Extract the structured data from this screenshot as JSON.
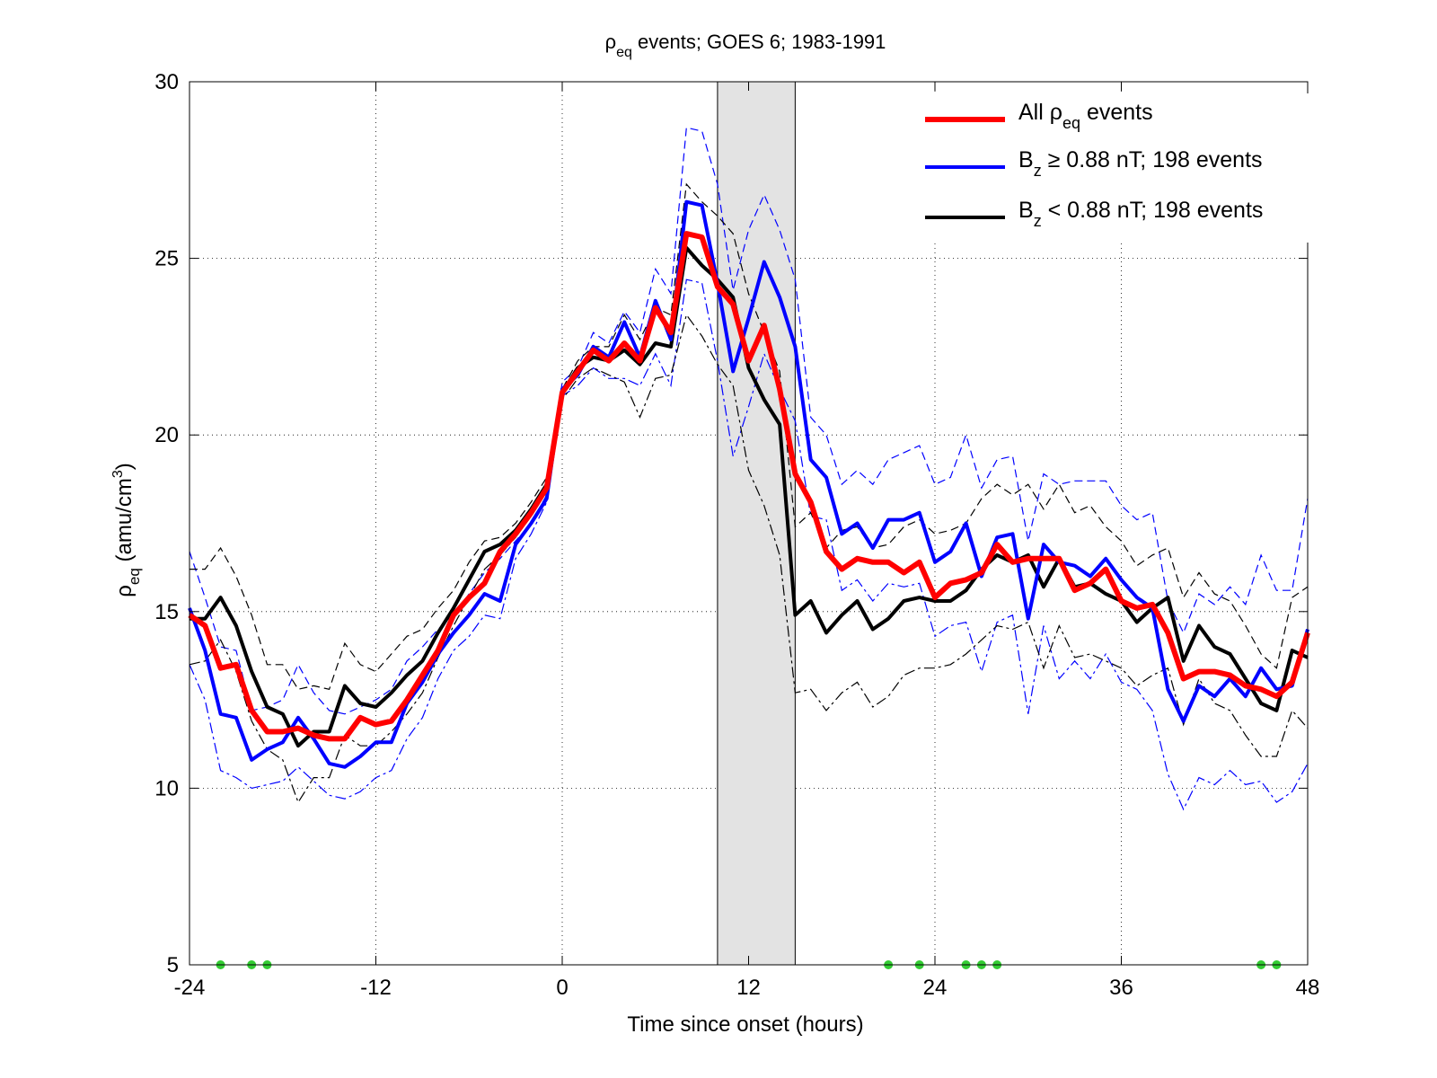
{
  "chart_data": {
    "type": "line",
    "title": {
      "sym": "ρ",
      "sub": "eq",
      "rest": " events; GOES 6; 1983-1991"
    },
    "xlabel": "Time since onset (hours)",
    "ylabel": {
      "sym": "ρ",
      "sub": "eq",
      "rest": " (amu/cm",
      "sup": "3",
      "close": ")"
    },
    "xlim": [
      -24,
      48
    ],
    "ylim": [
      5,
      30
    ],
    "xticks": [
      -24,
      -12,
      0,
      12,
      24,
      36,
      48
    ],
    "xtick_labels": [
      "-24",
      "-12",
      "0",
      "12",
      "24",
      "36",
      "48"
    ],
    "yticks": [
      5,
      10,
      15,
      20,
      25,
      30
    ],
    "ytick_labels": [
      "5",
      "10",
      "15",
      "20",
      "25",
      "30"
    ],
    "grid": true,
    "legend_position": "top-right",
    "shaded_interval": [
      10,
      15
    ],
    "shade_color": "#e3e3e3",
    "colors": {
      "red": "#ff0000",
      "blue": "#0000ff",
      "black": "#000000",
      "green": "#33cc33"
    },
    "x": [
      -24,
      -23,
      -22,
      -21,
      -20,
      -19,
      -18,
      -17,
      -16,
      -15,
      -14,
      -13,
      -12,
      -11,
      -10,
      -9,
      -8,
      -7,
      -6,
      -5,
      -4,
      -3,
      -2,
      -1,
      0,
      1,
      2,
      3,
      4,
      5,
      6,
      7,
      8,
      9,
      10,
      11,
      12,
      13,
      14,
      15,
      16,
      17,
      18,
      19,
      20,
      21,
      22,
      23,
      24,
      25,
      26,
      27,
      28,
      29,
      30,
      31,
      32,
      33,
      34,
      35,
      36,
      37,
      38,
      39,
      40,
      41,
      42,
      43,
      44,
      45,
      46,
      47,
      48
    ],
    "series": [
      {
        "name_parts": {
          "pre": "All ",
          "sym": "ρ",
          "sub": "eq",
          "rest": " events"
        },
        "color": "#ff0000",
        "width": 6,
        "values": [
          14.9,
          14.6,
          13.4,
          13.5,
          12.2,
          11.6,
          11.6,
          11.7,
          11.5,
          11.4,
          11.4,
          12.0,
          11.8,
          11.9,
          12.5,
          13.2,
          13.9,
          14.9,
          15.4,
          15.8,
          16.7,
          17.2,
          17.8,
          18.5,
          21.2,
          21.8,
          22.4,
          22.1,
          22.6,
          22.1,
          23.6,
          22.9,
          25.7,
          25.6,
          24.2,
          23.7,
          22.1,
          23.1,
          21.3,
          18.9,
          18.1,
          16.7,
          16.2,
          16.5,
          16.4,
          16.4,
          16.1,
          16.4,
          15.4,
          15.8,
          15.9,
          16.1,
          16.9,
          16.4,
          16.5,
          16.5,
          16.5,
          15.6,
          15.8,
          16.2,
          15.3,
          15.1,
          15.2,
          14.4,
          13.1,
          13.3,
          13.3,
          13.2,
          12.9,
          12.8,
          12.6,
          13.0,
          14.4
        ]
      },
      {
        "name_parts": {
          "pre": "",
          "sym": "B",
          "sub": "z",
          "rest": " ≥ 0.88 nT; 198 events"
        },
        "color": "#0000ff",
        "width": 4,
        "values": [
          15.1,
          13.9,
          12.1,
          12.0,
          10.8,
          11.1,
          11.3,
          12.0,
          11.4,
          10.7,
          10.6,
          10.9,
          11.3,
          11.3,
          12.4,
          13.0,
          13.8,
          14.4,
          14.9,
          15.5,
          15.3,
          16.9,
          17.5,
          18.2,
          21.3,
          21.7,
          22.5,
          22.2,
          23.2,
          22.2,
          23.8,
          22.7,
          26.6,
          26.5,
          24.3,
          21.8,
          23.3,
          24.9,
          23.9,
          22.5,
          19.3,
          18.8,
          17.2,
          17.5,
          16.8,
          17.6,
          17.6,
          17.8,
          16.4,
          16.7,
          17.5,
          16.0,
          17.1,
          17.2,
          14.8,
          16.9,
          16.4,
          16.3,
          16.0,
          16.5,
          15.9,
          15.4,
          15.1,
          12.8,
          11.9,
          12.9,
          12.6,
          13.1,
          12.6,
          13.4,
          12.8,
          12.9,
          14.5
        ]
      },
      {
        "name_parts": {
          "pre": "",
          "sym": "B",
          "sub": "z",
          "rest": " < 0.88 nT; 198 events"
        },
        "color": "#000000",
        "width": 4,
        "values": [
          14.8,
          14.8,
          15.4,
          14.6,
          13.3,
          12.3,
          12.1,
          11.2,
          11.6,
          11.6,
          12.9,
          12.4,
          12.3,
          12.7,
          13.2,
          13.6,
          14.4,
          15.1,
          15.9,
          16.7,
          16.9,
          17.3,
          17.9,
          18.6,
          21.2,
          21.9,
          22.2,
          22.1,
          22.4,
          22.0,
          22.6,
          22.5,
          25.3,
          24.8,
          24.4,
          23.9,
          21.9,
          21.0,
          20.3,
          14.9,
          15.3,
          14.4,
          14.9,
          15.3,
          14.5,
          14.8,
          15.3,
          15.4,
          15.3,
          15.3,
          15.6,
          16.2,
          16.6,
          16.4,
          16.6,
          15.7,
          16.5,
          15.7,
          15.8,
          15.5,
          15.3,
          14.7,
          15.1,
          15.4,
          13.6,
          14.6,
          14.0,
          13.8,
          13.1,
          12.4,
          12.2,
          13.9,
          13.7
        ]
      }
    ],
    "bands": [
      {
        "color": "#0000ff",
        "dash": "9,5",
        "upper": [
          16.7,
          15.4,
          14.0,
          13.9,
          12.2,
          12.3,
          12.5,
          13.5,
          12.7,
          12.2,
          12.1,
          12.3,
          12.5,
          12.8,
          13.6,
          14.0,
          14.5,
          14.9,
          15.5,
          16.1,
          16.5,
          17.0,
          17.5,
          18.3,
          21.5,
          21.9,
          22.9,
          22.6,
          23.5,
          22.9,
          24.7,
          24.0,
          28.7,
          28.6,
          27.1,
          24.1,
          25.8,
          26.8,
          25.8,
          24.4,
          20.5,
          20.0,
          18.6,
          19.0,
          18.6,
          19.3,
          19.5,
          19.7,
          18.6,
          18.8,
          20.0,
          18.5,
          19.3,
          19.4,
          17.0,
          18.9,
          18.6,
          18.7,
          18.7,
          18.7,
          18.0,
          17.6,
          17.8,
          15.3,
          14.4,
          15.5,
          15.2,
          15.7,
          15.2,
          16.6,
          15.6,
          15.6,
          18.2
        ]
      },
      {
        "color": "#0000ff",
        "dash": "12,4,3,4",
        "lower": [
          13.5,
          12.5,
          10.5,
          10.3,
          10.0,
          10.1,
          10.2,
          10.6,
          10.2,
          9.8,
          9.7,
          9.9,
          10.3,
          10.5,
          11.4,
          12.0,
          13.1,
          13.9,
          14.3,
          14.9,
          14.8,
          16.5,
          17.2,
          18.1,
          21.1,
          21.4,
          21.9,
          21.6,
          21.6,
          21.4,
          22.3,
          21.4,
          24.4,
          24.3,
          22.1,
          19.4,
          20.8,
          22.3,
          21.3,
          20.4,
          17.7,
          17.6,
          15.6,
          15.9,
          15.3,
          15.8,
          15.7,
          15.8,
          14.3,
          14.6,
          14.7,
          13.3,
          14.7,
          14.9,
          12.1,
          14.6,
          13.1,
          13.6,
          13.1,
          13.8,
          13.0,
          12.8,
          12.2,
          10.4,
          9.4,
          10.3,
          10.1,
          10.5,
          10.1,
          10.2,
          9.6,
          9.9,
          10.7
        ]
      },
      {
        "color": "#000000",
        "dash": "9,5",
        "upper": [
          16.2,
          16.2,
          16.8,
          16.0,
          14.9,
          13.5,
          13.5,
          12.8,
          12.9,
          12.8,
          14.1,
          13.5,
          13.3,
          13.8,
          14.3,
          14.5,
          15.1,
          15.6,
          16.4,
          17.0,
          17.1,
          17.5,
          18.1,
          18.8,
          21.3,
          22.1,
          22.5,
          22.5,
          23.4,
          22.7,
          23.6,
          23.4,
          27.1,
          26.6,
          26.2,
          25.7,
          24.0,
          22.9,
          21.8,
          17.4,
          17.8,
          16.8,
          17.3,
          17.4,
          16.8,
          16.9,
          17.4,
          17.6,
          17.2,
          17.3,
          17.5,
          18.2,
          18.6,
          18.3,
          18.6,
          17.9,
          18.6,
          17.8,
          18.0,
          17.4,
          17.0,
          16.3,
          16.6,
          16.8,
          15.4,
          16.1,
          15.5,
          15.3,
          14.6,
          13.8,
          13.4,
          15.4,
          15.7
        ]
      },
      {
        "color": "#000000",
        "dash": "12,4,3,4",
        "lower": [
          13.5,
          13.6,
          14.2,
          13.3,
          11.9,
          11.1,
          10.8,
          9.6,
          10.3,
          10.3,
          11.5,
          11.2,
          11.2,
          11.6,
          12.1,
          12.7,
          13.7,
          14.6,
          15.4,
          16.2,
          16.6,
          17.1,
          17.7,
          18.4,
          21.0,
          21.6,
          21.9,
          21.7,
          21.5,
          20.5,
          21.6,
          21.7,
          23.4,
          22.8,
          22.0,
          21.4,
          19.0,
          18.0,
          16.6,
          12.7,
          12.8,
          12.2,
          12.7,
          13.0,
          12.3,
          12.6,
          13.2,
          13.4,
          13.4,
          13.5,
          13.8,
          14.2,
          14.6,
          14.5,
          14.7,
          13.4,
          14.6,
          13.7,
          13.8,
          13.6,
          13.4,
          12.9,
          13.2,
          13.4,
          11.8,
          13.1,
          12.4,
          12.2,
          11.5,
          10.9,
          10.9,
          12.2,
          11.7
        ]
      }
    ],
    "markers": [
      22,
      20,
      19,
      -21,
      -23,
      -24
    ]
  }
}
